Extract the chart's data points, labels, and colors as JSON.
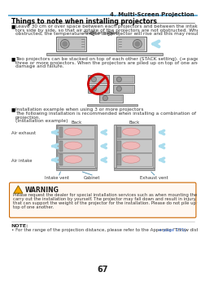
{
  "page_number": "67",
  "chapter_header": "4. Multi-Screen Projection",
  "section_title": "Things to note when installing projectors",
  "bullet1_line1": "Leave 30 cm or over space between each projectors and between the intake vent and the wall for installing projec-",
  "bullet1_line2": "tors side by side, so that air intake of the projectors are not obstructed. When the air intake and discharge outlet are",
  "bullet1_line3": "obstructed, the temperature inside the projector will rise and this may result in a malfunction.",
  "label_30cm": "30 cm or greater",
  "bullet2_line1": "Two projectors can be stacked on top of each other (STACK setting). (→ page 156) Do not attempt to directly stack",
  "bullet2_line2": "three or more projectors. When the projectors are piled up on top of one another, they may fall down, resulting in",
  "bullet2_line3": "damage and failure.",
  "bullet3_line1": "Installation example when using 3 or more projectors",
  "bullet3_line2": "The following installation is recommended when installing a combination of 3 or more projectors for multi-screen",
  "bullet3_line3": "projection.",
  "install_label": "(Installation example)",
  "back_label": "Back",
  "side_label1": "Air exhaust",
  "side_label2": "Air intake",
  "bottom_label1": "Intake vent",
  "bottom_label2": "Cabinet",
  "bottom_label3": "Exhaust vent",
  "warning_title": "WARNING",
  "warning_line1": "Please request the dealer for special installation services such as when mounting the projector to the ceiling. Never",
  "warning_line2": "carry out the installation by yourself. The projector may fall down and result in injury. Please use a sturdy cabinet",
  "warning_line3": "that can support the weight of the projector for the installation. Please do not pile up the projectors directly on",
  "warning_line4": "top of one another.",
  "note_label": "NOTE:",
  "note_text": "• For the range of the projection distance, please refer to the Appendix “Throw distance and screen size”. (→ page 171)",
  "note_link_color": "#3366cc",
  "bg_color": "#ffffff",
  "header_line_color": "#4fa3d1",
  "title_underline_color": "#333333",
  "text_color": "#333333",
  "warning_bg": "#fff8f2",
  "warning_border": "#cc6600"
}
